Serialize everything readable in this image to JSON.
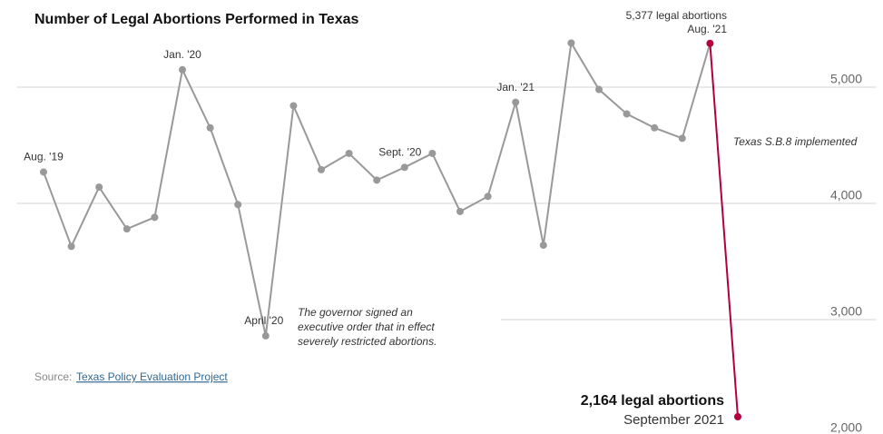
{
  "chart_data": {
    "type": "line",
    "title": "Number of Legal Abortions Performed in Texas",
    "categories": [
      "Aug. '19",
      null,
      null,
      null,
      null,
      "Jan. '20",
      null,
      null,
      "April '20",
      null,
      null,
      null,
      null,
      "Sept. '20",
      null,
      null,
      null,
      "Jan. '21",
      null,
      null,
      null,
      null,
      null,
      null,
      "Aug. '21",
      "September 2021"
    ],
    "series": [
      {
        "name": "Legal abortions",
        "color": "#999999",
        "highlight_color": "#b3003b",
        "values": [
          4270,
          3630,
          4140,
          3780,
          3880,
          5150,
          4650,
          3990,
          2860,
          4840,
          4290,
          4430,
          4200,
          4310,
          4430,
          3930,
          4060,
          4870,
          3640,
          5380,
          4980,
          4770,
          4650,
          4560,
          5377,
          2164
        ],
        "value_labels": [
          null,
          null,
          null,
          null,
          null,
          null,
          null,
          null,
          null,
          null,
          null,
          null,
          null,
          null,
          null,
          null,
          null,
          null,
          null,
          null,
          null,
          null,
          null,
          null,
          "5,377 legal abortions",
          "2,164 legal abortions"
        ]
      }
    ],
    "ylim": [
      2000,
      5750
    ],
    "yticks": [
      {
        "value": 5000,
        "label": "5,000"
      },
      {
        "value": 4000,
        "label": "4,000"
      },
      {
        "value": 3000,
        "label": "3,000"
      },
      {
        "value": 2000,
        "label": "2,000"
      }
    ],
    "grid": true,
    "annotations": [
      "The governor signed an",
      "executive order that in effect",
      "severely restricted abortions.",
      "Texas S.B.8 implemented"
    ],
    "source": {
      "prefix": "Source:",
      "link": "Texas Policy Evaluation Project"
    }
  }
}
